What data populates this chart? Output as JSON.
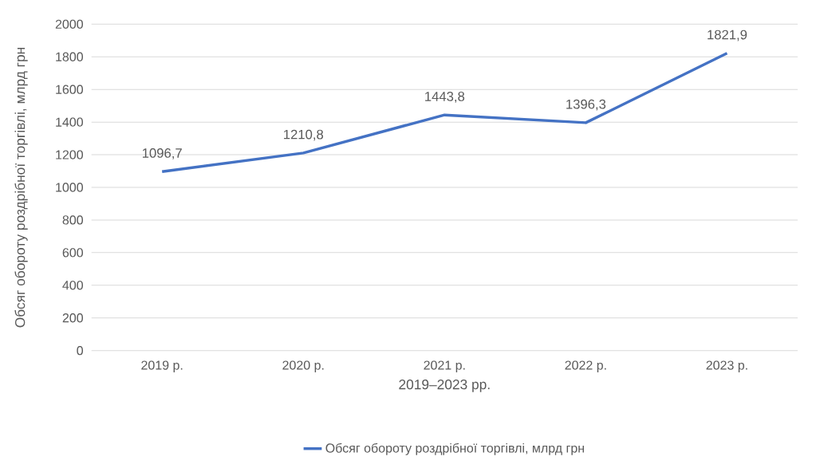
{
  "chart_data": {
    "type": "line",
    "categories": [
      "2019 р.",
      "2020 р.",
      "2021 р.",
      "2022 р.",
      "2023 р."
    ],
    "xlabel": "2019–2023 рр.",
    "ylabel": "Обсяг обороту  роздрібної торгівлі, млрд грн",
    "series": [
      {
        "name": "Обсяг обороту роздрібної торгівлі, млрд грн",
        "color": "#4472c4",
        "values": [
          1096.7,
          1210.8,
          1443.8,
          1396.3,
          1821.9
        ],
        "value_labels": [
          "1096,7",
          "1210,8",
          "1443,8",
          "1396,3",
          "1821,9"
        ]
      }
    ],
    "ylim": [
      0,
      2000
    ],
    "yticks": [
      0,
      200,
      400,
      600,
      800,
      1000,
      1200,
      1400,
      1600,
      1800,
      2000
    ],
    "grid": "y",
    "legend": "bottom",
    "marker": "none",
    "line_style": "solid"
  }
}
